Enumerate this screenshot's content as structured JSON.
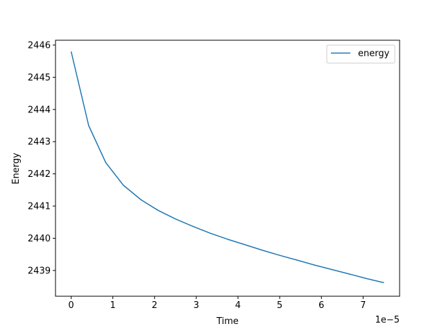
{
  "chart_data": {
    "type": "line",
    "xlabel": "Time",
    "ylabel": "Energy",
    "x_offset_label": "1e−5",
    "xlim": [
      -3.75e-06,
      7.875e-05
    ],
    "ylim": [
      2438.2,
      2446.15
    ],
    "xticks": [
      0,
      1e-05,
      2e-05,
      3e-05,
      4e-05,
      5e-05,
      6e-05,
      7e-05
    ],
    "xtick_labels": [
      "0",
      "1",
      "2",
      "3",
      "4",
      "5",
      "6",
      "7"
    ],
    "yticks": [
      2439,
      2440,
      2441,
      2442,
      2443,
      2444,
      2445,
      2446
    ],
    "ytick_labels": [
      "2439",
      "2440",
      "2441",
      "2442",
      "2443",
      "2444",
      "2445",
      "2446"
    ],
    "grid": false,
    "legend_position": "top-right",
    "series": [
      {
        "name": "energy",
        "color": "#1f77b4",
        "x": [
          0,
          4.2e-06,
          8.3e-06,
          1.25e-05,
          1.67e-05,
          2.08e-05,
          2.5e-05,
          2.92e-05,
          3.33e-05,
          3.75e-05,
          4.17e-05,
          4.58e-05,
          5e-05,
          5.42e-05,
          5.83e-05,
          6.25e-05,
          6.67e-05,
          7.08e-05,
          7.5e-05
        ],
        "y": [
          2445.8,
          2443.5,
          2442.35,
          2441.65,
          2441.2,
          2440.87,
          2440.6,
          2440.37,
          2440.16,
          2439.97,
          2439.8,
          2439.63,
          2439.47,
          2439.32,
          2439.17,
          2439.03,
          2438.89,
          2438.75,
          2438.62
        ]
      }
    ]
  }
}
